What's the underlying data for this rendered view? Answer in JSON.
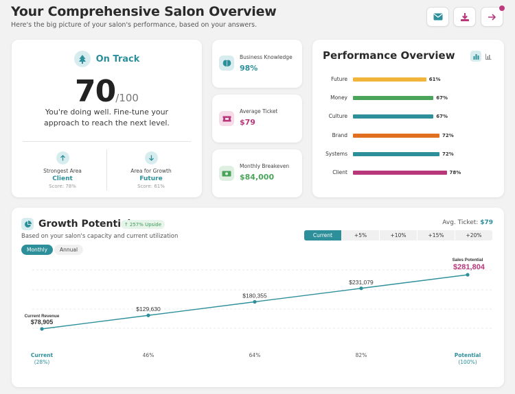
{
  "header": {
    "title": "Your Comprehensive Salon Overview",
    "subtitle": "Here's the big picture of your salon's performance, based on your answers.",
    "buttons": [
      "mail-icon",
      "download-icon",
      "arrow-right-icon"
    ]
  },
  "score_card": {
    "status": "On Track",
    "score": "70",
    "max": "/100",
    "message": "You're doing well. Fine-tune your approach to reach the next level.",
    "strongest": {
      "label": "Strongest Area",
      "value": "Client",
      "score": "Score: 78%"
    },
    "growth_area": {
      "label": "Area for Growth",
      "value": "Future",
      "score": "Score: 61%"
    }
  },
  "kpis": [
    {
      "label": "Business Knowledge",
      "value": "98%",
      "color": "#2d8f9a",
      "icon": "brain-icon"
    },
    {
      "label": "Average Ticket",
      "value": "$79",
      "color": "#b8367a",
      "icon": "ticket-icon"
    },
    {
      "label": "Monthly Breakeven",
      "value": "$84,000",
      "color": "#4aa55a",
      "icon": "cash-icon"
    }
  ],
  "performance": {
    "title": "Performance Overview",
    "bars": [
      {
        "label": "Future",
        "value": 61,
        "text": "61%",
        "color": "#f2b53c"
      },
      {
        "label": "Money",
        "value": 67,
        "text": "67%",
        "color": "#4aa55a"
      },
      {
        "label": "Culture",
        "value": 67,
        "text": "67%",
        "color": "#2d8f9a"
      },
      {
        "label": "Brand",
        "value": 72,
        "text": "72%",
        "color": "#e07020"
      },
      {
        "label": "Systems",
        "value": 72,
        "text": "72%",
        "color": "#2d8f9a"
      },
      {
        "label": "Client",
        "value": 78,
        "text": "78%",
        "color": "#b8367a"
      }
    ]
  },
  "growth": {
    "title": "Growth Potential",
    "upside": "257% Upside",
    "subtitle": "Based on your salon's capacity and current utilization",
    "avg_label": "Avg. Ticket:",
    "avg_value": "$79",
    "periods": [
      "Monthly",
      "Annual"
    ],
    "scenarios": [
      "Current",
      "+5%",
      "+10%",
      "+15%",
      "+20%"
    ],
    "current_label": "Current Revenue",
    "potential_label": "Sales Potential"
  },
  "chart_data": {
    "type": "line",
    "x": [
      "Current (28%)",
      "46%",
      "64%",
      "82%",
      "Potential (100%)"
    ],
    "x_top": [
      "Current",
      "46%",
      "64%",
      "82%",
      "Potential"
    ],
    "x_sub": [
      "(28%)",
      "",
      "",
      "",
      "(100%)"
    ],
    "values": [
      78905,
      129630,
      180355,
      231079,
      281804
    ],
    "labels": [
      "$78,905",
      "$129,630",
      "$180,355",
      "$231,079",
      "$281,804"
    ],
    "ylim": [
      0,
      300000
    ]
  }
}
